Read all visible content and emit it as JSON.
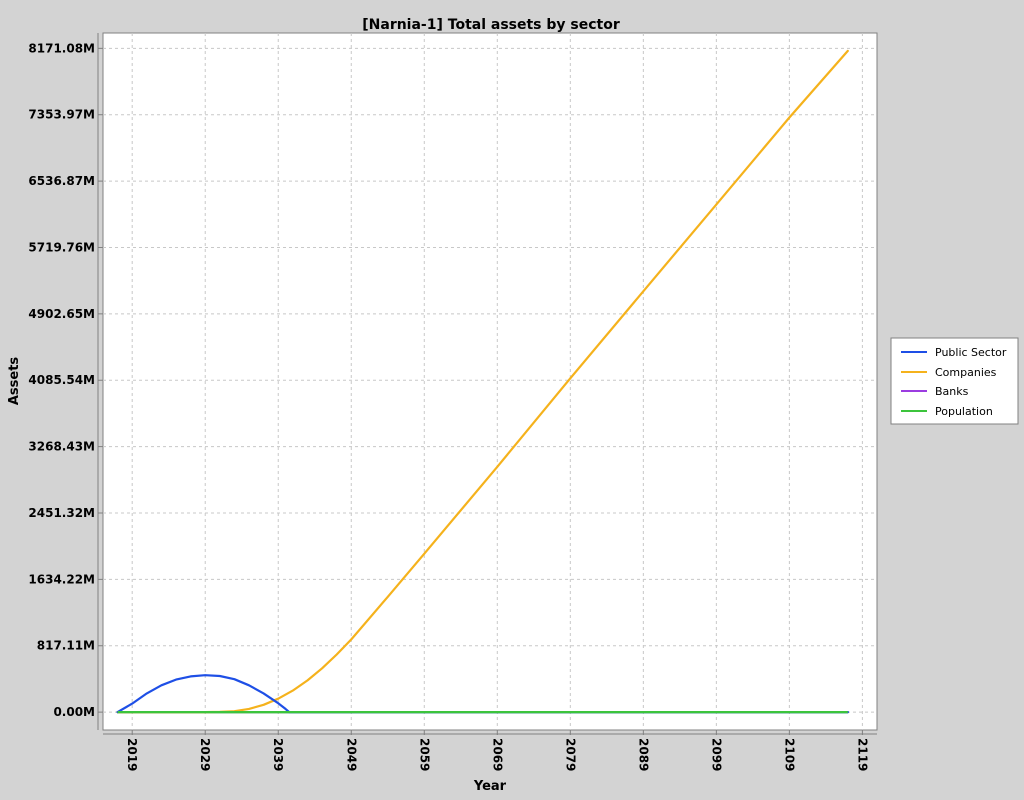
{
  "chart_data": {
    "type": "line",
    "title": "[Narnia-1] Total assets by sector",
    "xlabel": "Year",
    "ylabel": "Assets",
    "xlim": [
      2015,
      2121
    ],
    "ylim": [
      -220,
      8360
    ],
    "xticks": [
      2019,
      2029,
      2039,
      2049,
      2059,
      2069,
      2079,
      2089,
      2099,
      2109,
      2119
    ],
    "yticks": [
      {
        "value": 0,
        "label": "0.00M"
      },
      {
        "value": 817.11,
        "label": "817.11M"
      },
      {
        "value": 1634.22,
        "label": "1634.22M"
      },
      {
        "value": 2451.32,
        "label": "2451.32M"
      },
      {
        "value": 3268.43,
        "label": "3268.43M"
      },
      {
        "value": 4085.54,
        "label": "4085.54M"
      },
      {
        "value": 4902.65,
        "label": "4902.65M"
      },
      {
        "value": 5719.76,
        "label": "5719.76M"
      },
      {
        "value": 6536.87,
        "label": "6536.87M"
      },
      {
        "value": 7353.97,
        "label": "7353.97M"
      },
      {
        "value": 8171.08,
        "label": "8171.08M"
      }
    ],
    "grid": true,
    "legend_position": "right",
    "series": [
      {
        "name": "Public Sector",
        "color": "#1e4fe6",
        "x": [
          2017,
          2019,
          2021,
          2023,
          2025,
          2027,
          2029,
          2031,
          2033,
          2035,
          2037,
          2039,
          2040,
          2040.5,
          2041,
          2060,
          2080,
          2100,
          2117
        ],
        "y": [
          0,
          105,
          230,
          330,
          400,
          440,
          455,
          445,
          405,
          330,
          230,
          110,
          40,
          0,
          0,
          0,
          0,
          0,
          0
        ]
      },
      {
        "name": "Companies",
        "color": "#f5b21c",
        "x": [
          2017,
          2025,
          2029,
          2031,
          2033,
          2035,
          2037,
          2039,
          2041,
          2043,
          2045,
          2047,
          2049,
          2054,
          2059,
          2069,
          2079,
          2089,
          2099,
          2109,
          2117
        ],
        "y": [
          0,
          0,
          0,
          3,
          12,
          40,
          90,
          165,
          265,
          390,
          540,
          710,
          895,
          1420,
          1950,
          3020,
          4110,
          5180,
          6250,
          7320,
          8140
        ]
      },
      {
        "name": "Banks",
        "color": "#9b3ce0",
        "x": [
          2017,
          2117
        ],
        "y": [
          0,
          0
        ]
      },
      {
        "name": "Population",
        "color": "#3cc43c",
        "x": [
          2017,
          2117
        ],
        "y": [
          0,
          0
        ]
      }
    ]
  }
}
